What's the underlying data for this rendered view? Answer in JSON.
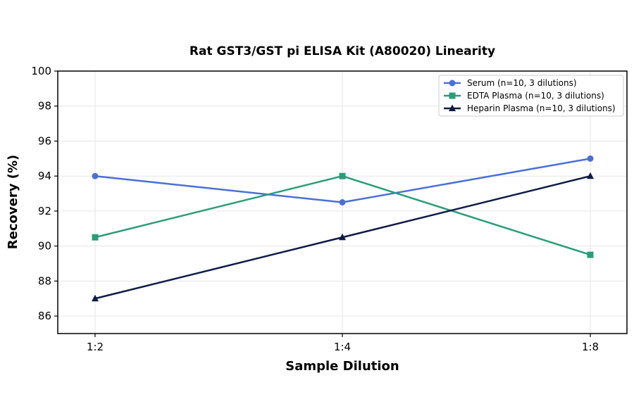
{
  "chart_data": {
    "type": "line",
    "title": "Rat GST3/GST pi ELISA Kit (A80020) Linearity",
    "xlabel": "Sample Dilution",
    "ylabel": "Recovery (%)",
    "categories": [
      "1:2",
      "1:4",
      "1:8"
    ],
    "ylim": [
      85,
      100
    ],
    "yticks": [
      86,
      88,
      90,
      92,
      94,
      96,
      98,
      100
    ],
    "grid": true,
    "legend_position": "top-right",
    "series": [
      {
        "name": "Serum (n=10, 3 dilutions)",
        "values": [
          94,
          92.5,
          95
        ],
        "color": "#4a6fd8",
        "marker": "circle"
      },
      {
        "name": "EDTA Plasma (n=10, 3 dilutions)",
        "values": [
          90.5,
          94,
          89.5
        ],
        "color": "#2a9d78",
        "marker": "square"
      },
      {
        "name": "Heparin Plasma (n=10, 3 dilutions)",
        "values": [
          87,
          90.5,
          94
        ],
        "color": "#0d1b45",
        "marker": "triangle"
      }
    ]
  }
}
